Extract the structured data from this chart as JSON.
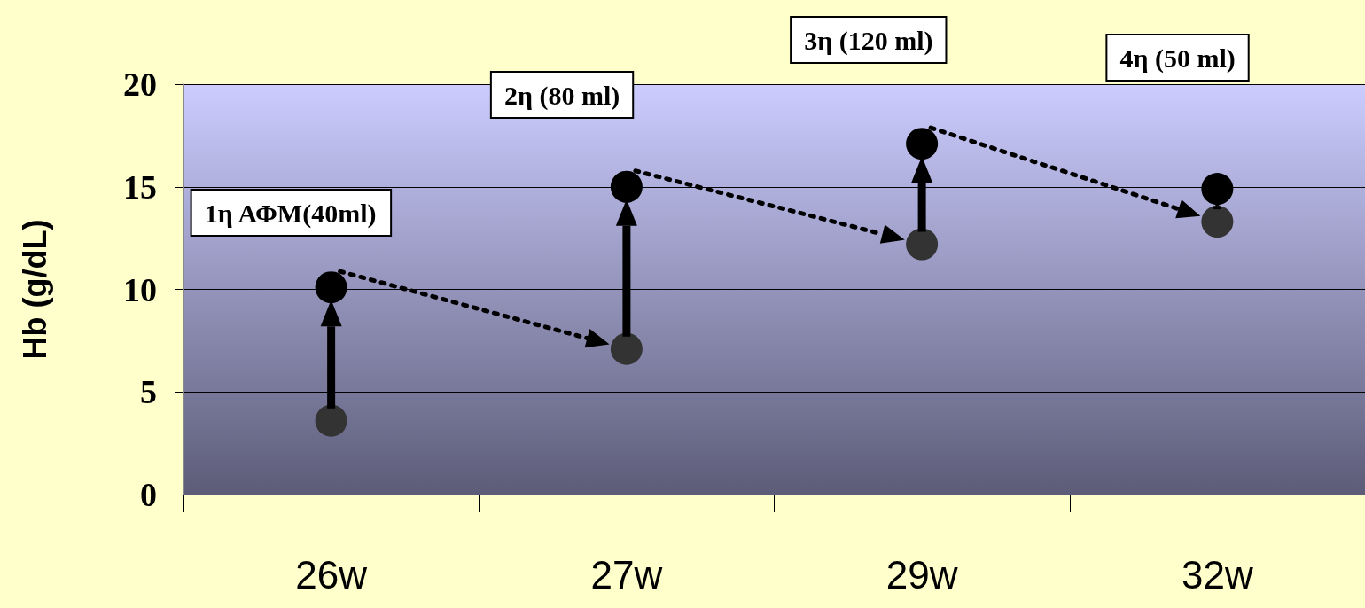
{
  "chart_data": {
    "type": "scatter",
    "ylabel": "Hb (g/dL)",
    "categories": [
      "26w",
      "27w",
      "29w",
      "32w"
    ],
    "series": [
      {
        "color": "#333333",
        "values": [
          3.6,
          7.1,
          12.2,
          13.3
        ]
      },
      {
        "color": "#000000",
        "values": [
          10.1,
          15.0,
          17.1,
          14.9
        ]
      }
    ],
    "ylim": [
      0,
      20
    ],
    "yticks": [
      0,
      5,
      10,
      15,
      20
    ],
    "grid": "y",
    "marker": "circle",
    "annotations": [
      "1η ΑΦΜ(40ml)",
      "2η (80 ml)",
      "3η (120 ml)",
      "4η (50 ml)"
    ]
  }
}
